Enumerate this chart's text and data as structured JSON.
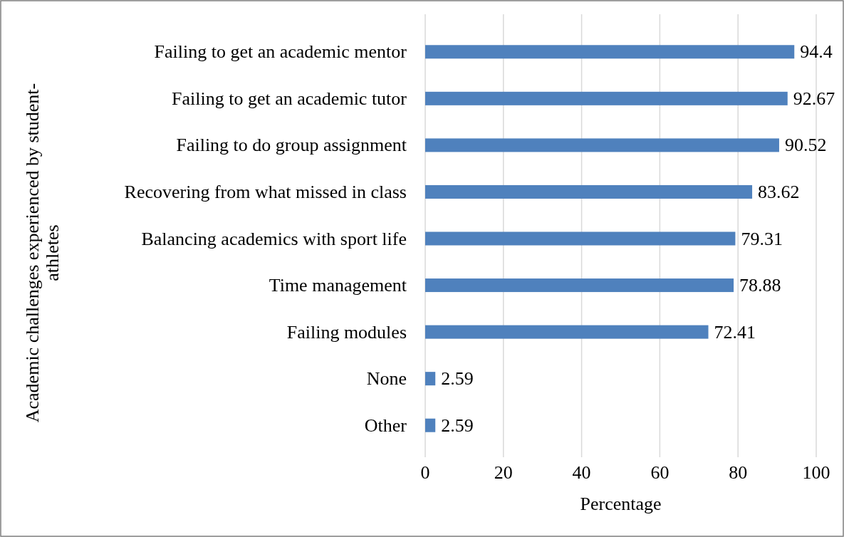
{
  "chart_data": {
    "type": "bar",
    "orientation": "horizontal",
    "ylabel": "Academic challenges experienced by student-athletes",
    "xlabel": "Percentage",
    "categories": [
      "Failing to get an academic mentor",
      "Failing to get an academic tutor",
      "Failing to do group assignment",
      "Recovering from what missed in class",
      "Balancing academics with sport life",
      "Time management",
      "Failing modules",
      "None",
      "Other"
    ],
    "values": [
      94.4,
      92.67,
      90.52,
      83.62,
      79.31,
      78.88,
      72.41,
      2.59,
      2.59
    ],
    "color": "#4f81bd",
    "xlim": [
      0,
      100
    ],
    "xticks": [
      0,
      20,
      40,
      60,
      80,
      100
    ],
    "grid": "x",
    "data_labels": true
  }
}
